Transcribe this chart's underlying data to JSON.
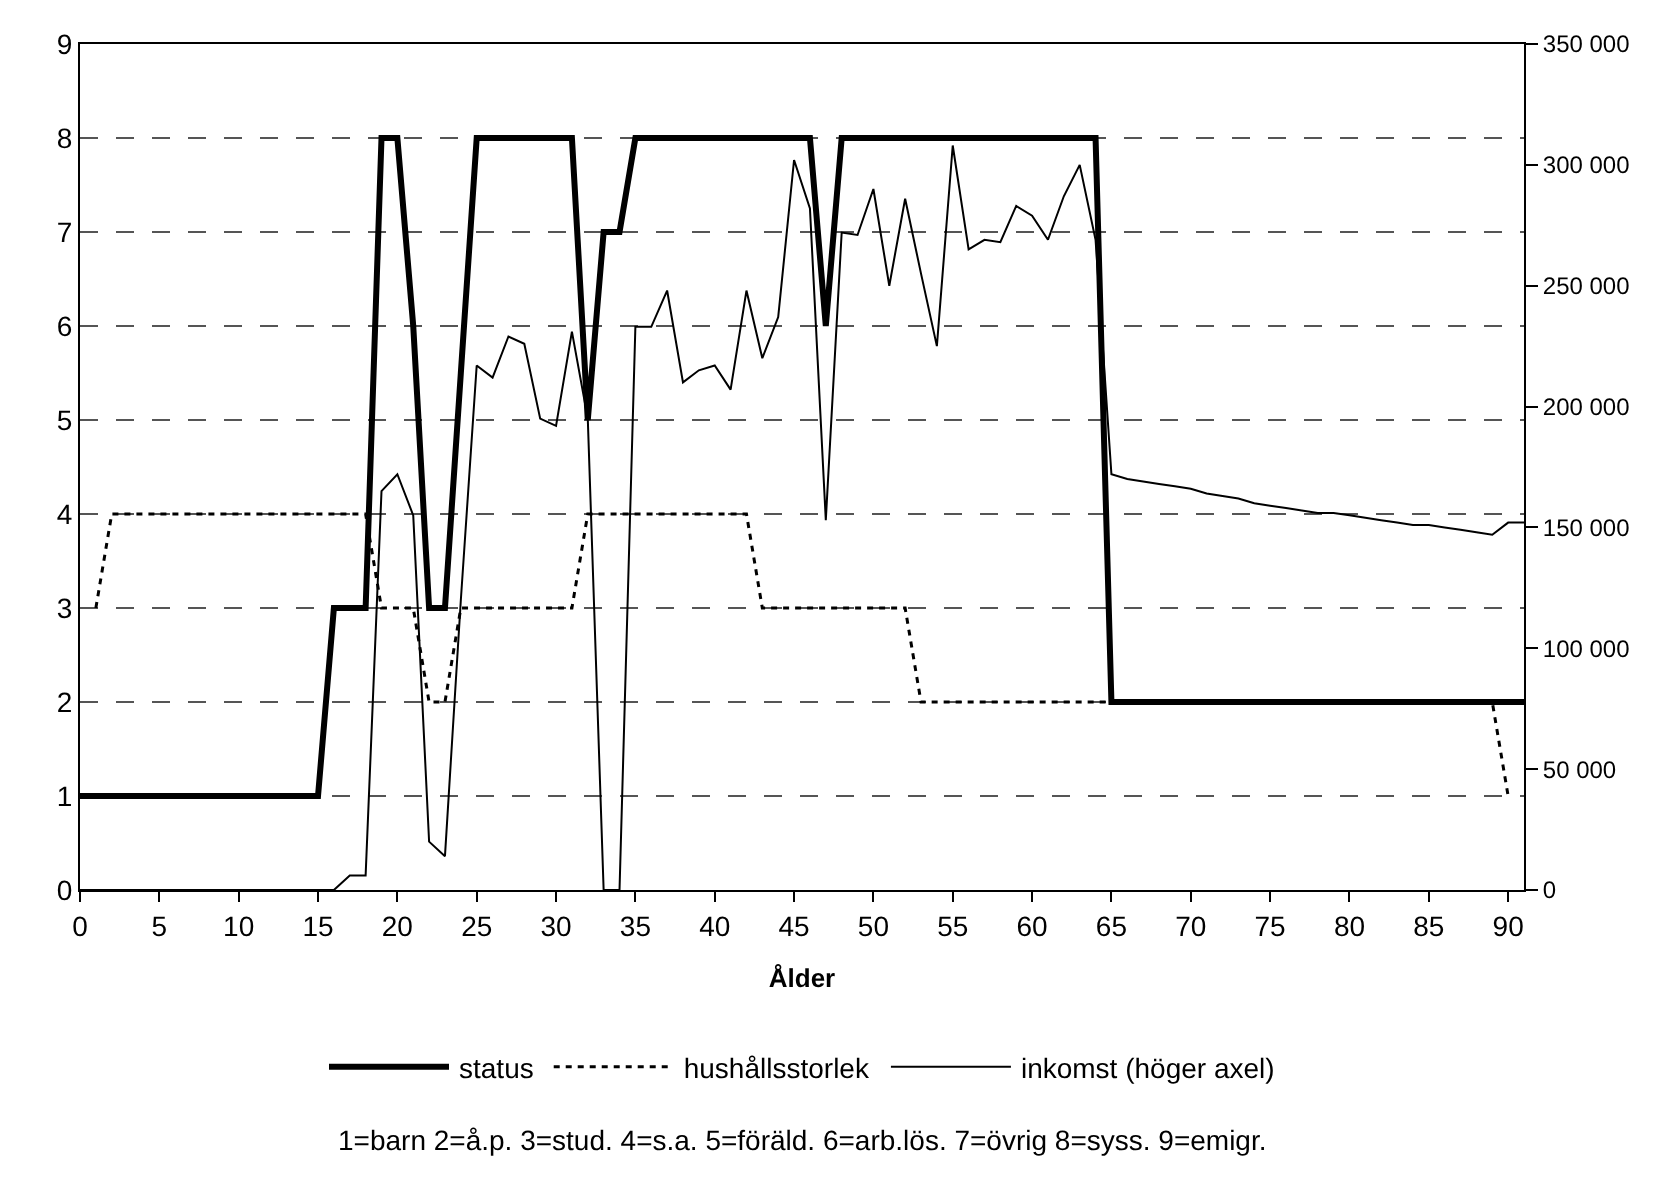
{
  "chart_data": {
    "type": "line",
    "xlabel": "Ålder",
    "x": [
      0,
      1,
      2,
      3,
      4,
      5,
      6,
      7,
      8,
      9,
      10,
      11,
      12,
      13,
      14,
      15,
      16,
      17,
      18,
      19,
      20,
      21,
      22,
      23,
      24,
      25,
      26,
      27,
      28,
      29,
      30,
      31,
      32,
      33,
      34,
      35,
      36,
      37,
      38,
      39,
      40,
      41,
      42,
      43,
      44,
      45,
      46,
      47,
      48,
      49,
      50,
      51,
      52,
      53,
      54,
      55,
      56,
      57,
      58,
      59,
      60,
      61,
      62,
      63,
      64,
      65,
      66,
      67,
      68,
      69,
      70,
      71,
      72,
      73,
      74,
      75,
      76,
      77,
      78,
      79,
      80,
      81,
      82,
      83,
      84,
      85,
      86,
      87,
      88,
      89,
      90,
      91
    ],
    "series": [
      {
        "name": "status",
        "color": "#000000",
        "line_style": "solid",
        "values": [
          1,
          1,
          1,
          1,
          1,
          1,
          1,
          1,
          1,
          1,
          1,
          1,
          1,
          1,
          1,
          1,
          3,
          3,
          3,
          8,
          8,
          6,
          3,
          3,
          5.5,
          8,
          8,
          8,
          8,
          8,
          8,
          8,
          5,
          7,
          7,
          8,
          8,
          8,
          8,
          8,
          8,
          8,
          8,
          8,
          8,
          8,
          8,
          6,
          8,
          8,
          8,
          8,
          8,
          8,
          8,
          8,
          8,
          8,
          8,
          8,
          8,
          8,
          8,
          8,
          8,
          2,
          2,
          2,
          2,
          2,
          2,
          2,
          2,
          2,
          2,
          2,
          2,
          2,
          2,
          2,
          2,
          2,
          2,
          2,
          2,
          2,
          2,
          2,
          2,
          2,
          2,
          2
        ]
      },
      {
        "name": "hushållsstorlek",
        "color": "#000000",
        "line_style": "dotted",
        "values": [
          null,
          3,
          4,
          4,
          4,
          4,
          4,
          4,
          4,
          4,
          4,
          4,
          4,
          4,
          4,
          4,
          4,
          4,
          4,
          3,
          3,
          3,
          2,
          2,
          3,
          3,
          3,
          3,
          3,
          3,
          3,
          3,
          4,
          4,
          4,
          4,
          4,
          4,
          4,
          4,
          4,
          4,
          4,
          3,
          3,
          3,
          3,
          3,
          3,
          3,
          3,
          3,
          3,
          2,
          2,
          2,
          2,
          2,
          2,
          2,
          2,
          2,
          2,
          2,
          2,
          2,
          2,
          2,
          2,
          2,
          2,
          2,
          2,
          2,
          2,
          2,
          2,
          2,
          2,
          2,
          2,
          2,
          2,
          2,
          2,
          2,
          2,
          2,
          2,
          2,
          1,
          null
        ]
      },
      {
        "name": "inkomst (höger axel)",
        "color": "#000000",
        "line_style": "solid",
        "axis": "y2",
        "values": [
          0,
          0,
          0,
          0,
          0,
          0,
          0,
          0,
          0,
          0,
          0,
          0,
          0,
          0,
          0,
          0,
          0,
          6000,
          6000,
          165000,
          172000,
          155000,
          20000,
          14000,
          120000,
          217000,
          212000,
          229000,
          226000,
          195000,
          192000,
          231000,
          195000,
          0,
          0,
          233000,
          233000,
          248000,
          210000,
          215000,
          217000,
          207000,
          248000,
          220000,
          237000,
          302000,
          282000,
          153000,
          272000,
          271000,
          290000,
          250000,
          286000,
          255000,
          225000,
          308000,
          265000,
          269000,
          268000,
          283000,
          279000,
          269000,
          287000,
          300000,
          269000,
          172000,
          170000,
          169000,
          168000,
          167000,
          166000,
          164000,
          163000,
          162000,
          160000,
          159000,
          158000,
          157000,
          156000,
          156000,
          155000,
          154000,
          153000,
          152000,
          151000,
          151000,
          150000,
          149000,
          148000,
          147000,
          152000,
          152000
        ]
      }
    ],
    "xlim": [
      0,
      91
    ],
    "xticks": [
      0,
      5,
      10,
      15,
      20,
      25,
      30,
      35,
      40,
      45,
      50,
      55,
      60,
      65,
      70,
      75,
      80,
      85,
      90
    ],
    "ylim": [
      0,
      9
    ],
    "yticks": [
      0,
      1,
      2,
      3,
      4,
      5,
      6,
      7,
      8,
      9
    ],
    "y2lim": [
      0,
      350000
    ],
    "y2ticks": [
      0,
      {
        "value": 50000,
        "label": "50 000"
      },
      {
        "value": 100000,
        "label": "100 000"
      },
      {
        "value": 150000,
        "label": "150 000"
      },
      {
        "value": 200000,
        "label": "200 000"
      },
      {
        "value": 250000,
        "label": "250 000"
      },
      {
        "value": 300000,
        "label": "300 000"
      },
      {
        "value": 350000,
        "label": "350 000"
      }
    ],
    "grid": "y",
    "legend": "bottom",
    "marker": "none",
    "annotations": [
      "1=barn 2=å.p. 3=stud. 4=s.a. 5=föräld. 6=arb.lös. 7=övrig 8=syss. 9=emigr."
    ]
  }
}
